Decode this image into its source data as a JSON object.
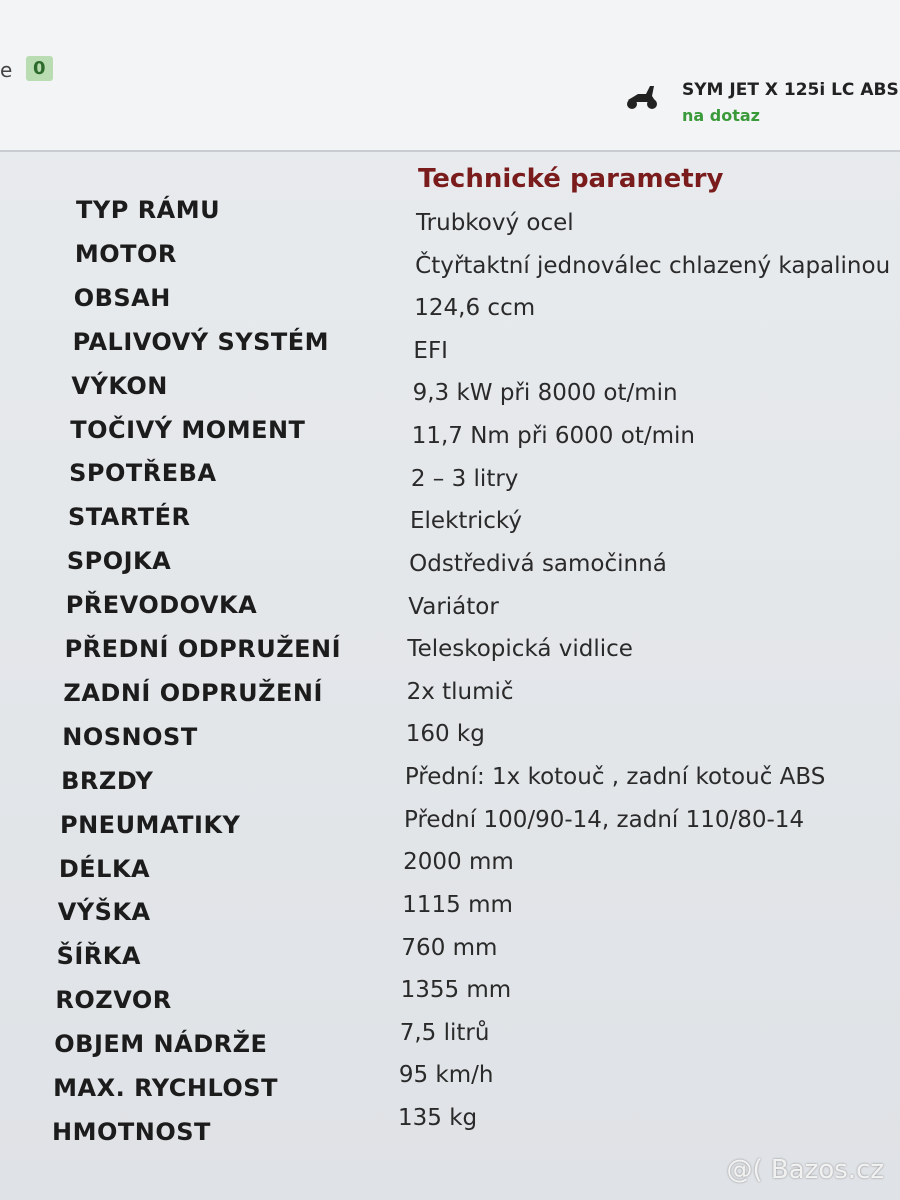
{
  "header": {
    "fragment": "e",
    "badge": "0",
    "product": "SYM JET X 125i LC ABS",
    "price": "na dotaz"
  },
  "title": "Technické parametry",
  "table": {
    "rows": [
      [
        "TYP RÁMU",
        "Trubkový ocel"
      ],
      [
        "MOTOR",
        "Čtyřtaktní jednoválec chlazený kapalinou"
      ],
      [
        "OBSAH",
        "124,6 ccm"
      ],
      [
        "PALIVOVÝ SYSTÉM",
        "EFI"
      ],
      [
        "VÝKON",
        "9,3 kW při 8000 ot/min"
      ],
      [
        "TOČIVÝ MOMENT",
        "11,7 Nm při 6000 ot/min"
      ],
      [
        "SPOTŘEBA",
        "2 – 3 litry"
      ],
      [
        "STARTÉR",
        "Elektrický"
      ],
      [
        "SPOJKA",
        "Odstředivá samočinná"
      ],
      [
        "PŘEVODOVKA",
        "Variátor"
      ],
      [
        "PŘEDNÍ ODPRUŽENÍ",
        "Teleskopická vidlice"
      ],
      [
        "ZADNÍ ODPRUŽENÍ",
        "2x tlumič"
      ],
      [
        "NOSNOST",
        "160 kg"
      ],
      [
        "BRZDY",
        "Přední: 1x kotouč , zadní kotouč ABS"
      ],
      [
        "PNEUMATIKY",
        "Přední 100/90-14, zadní 110/80-14"
      ],
      [
        "DÉLKA",
        "2000 mm"
      ],
      [
        "VÝŠKA",
        "1115 mm"
      ],
      [
        "ŠÍŘKA",
        "760 mm"
      ],
      [
        "ROZVOR",
        "1355 mm"
      ],
      [
        "OBJEM NÁDRŽE",
        "7,5 litrů"
      ],
      [
        "MAX. RYCHLOST",
        "95 km/h"
      ],
      [
        "HMOTNOST",
        "135 kg"
      ]
    ]
  },
  "watermark": "@( Bazos.cz"
}
